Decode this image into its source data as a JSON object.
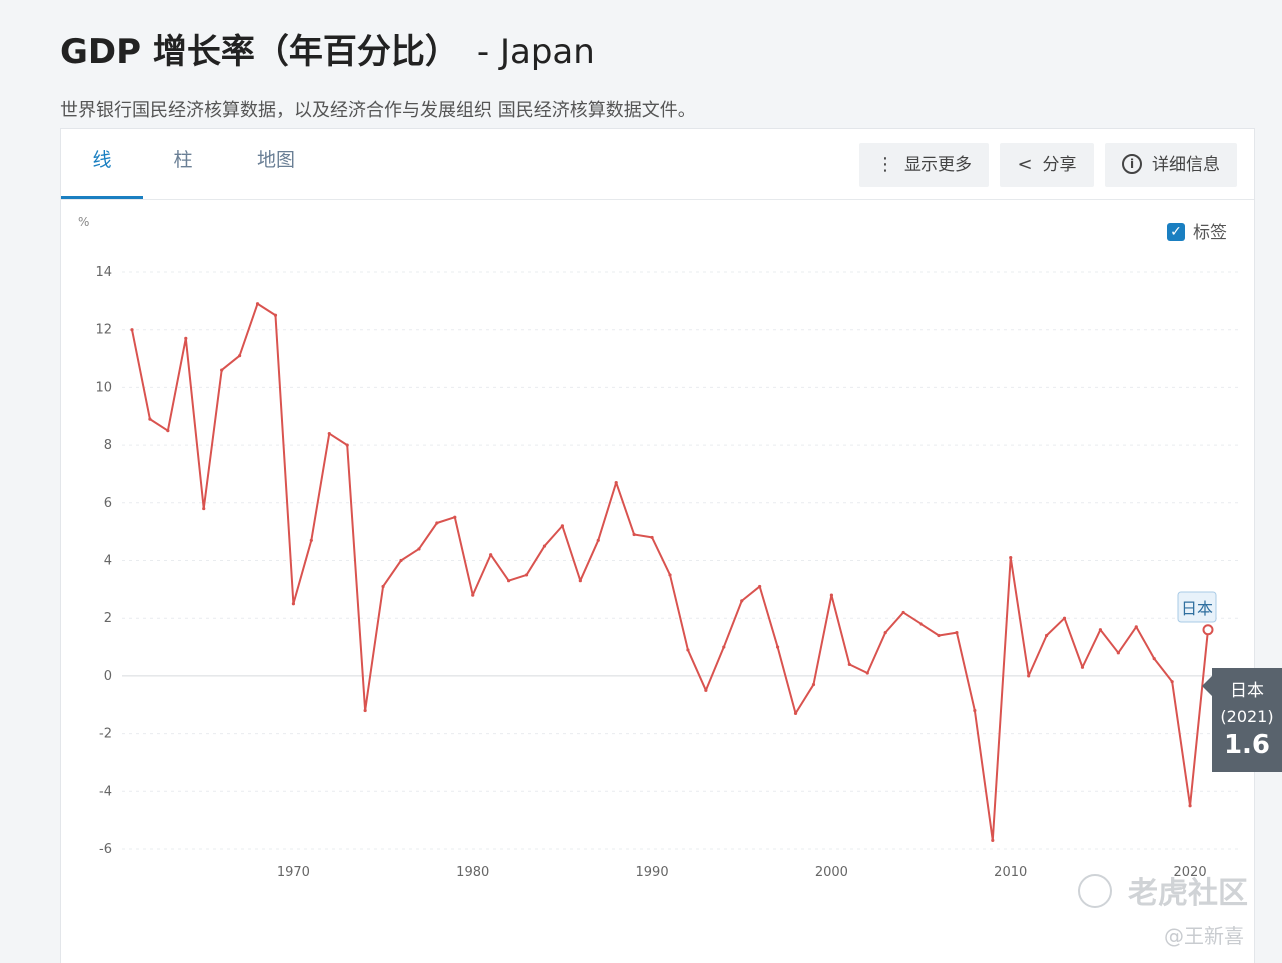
{
  "header": {
    "title": "GDP 增长率（年百分比）",
    "title_suffix": "- Japan",
    "subtitle": "世界银行国民经济核算数据，以及经济合作与发展组织 国民经济核算数据文件。"
  },
  "tabs": [
    {
      "label": "线",
      "active": true
    },
    {
      "label": "柱",
      "active": false
    },
    {
      "label": "地图",
      "active": false
    }
  ],
  "toolbar": {
    "more_label": "显示更多",
    "share_label": "分享",
    "details_label": "详细信息"
  },
  "label_toggle": {
    "label": "标签",
    "checked": true
  },
  "tooltip": {
    "name": "日本",
    "year": "(2021)",
    "value": "1.6"
  },
  "end_label": "日本",
  "watermark": {
    "brand": "老虎社区",
    "author": "@王新喜"
  },
  "colors": {
    "line": "#d9534f",
    "accent": "#1a7fc1",
    "tooltip_bg": "#59636d"
  },
  "chart_data": {
    "type": "line",
    "ylabel": "%",
    "ylim": [
      -6,
      14
    ],
    "yticks": [
      14,
      12,
      10,
      8,
      6,
      4,
      2,
      0,
      -2,
      -4,
      -6
    ],
    "xlim": [
      1961,
      2021
    ],
    "xticks": [
      1970,
      1980,
      1990,
      2000,
      2010,
      2020
    ],
    "grid": true,
    "series": [
      {
        "name": "日本",
        "x": [
          1961,
          1962,
          1963,
          1964,
          1965,
          1966,
          1967,
          1968,
          1969,
          1970,
          1971,
          1972,
          1973,
          1974,
          1975,
          1976,
          1977,
          1978,
          1979,
          1980,
          1981,
          1982,
          1983,
          1984,
          1985,
          1986,
          1987,
          1988,
          1989,
          1990,
          1991,
          1992,
          1993,
          1994,
          1995,
          1996,
          1997,
          1998,
          1999,
          2000,
          2001,
          2002,
          2003,
          2004,
          2005,
          2006,
          2007,
          2008,
          2009,
          2010,
          2011,
          2012,
          2013,
          2014,
          2015,
          2016,
          2017,
          2018,
          2019,
          2020,
          2021
        ],
        "y": [
          12.0,
          8.9,
          8.5,
          11.7,
          5.8,
          10.6,
          11.1,
          12.9,
          12.5,
          2.5,
          4.7,
          8.4,
          8.0,
          -1.2,
          3.1,
          4.0,
          4.4,
          5.3,
          5.5,
          2.8,
          4.2,
          3.3,
          3.5,
          4.5,
          5.2,
          3.3,
          4.7,
          6.7,
          4.9,
          4.8,
          3.5,
          0.9,
          -0.5,
          1.0,
          2.6,
          3.1,
          1.0,
          -1.3,
          -0.3,
          2.8,
          0.4,
          0.1,
          1.5,
          2.2,
          1.8,
          1.4,
          1.5,
          -1.2,
          -5.7,
          4.1,
          0.0,
          1.4,
          2.0,
          0.3,
          1.6,
          0.8,
          1.7,
          0.6,
          -0.2,
          -4.5,
          1.6
        ]
      }
    ]
  }
}
